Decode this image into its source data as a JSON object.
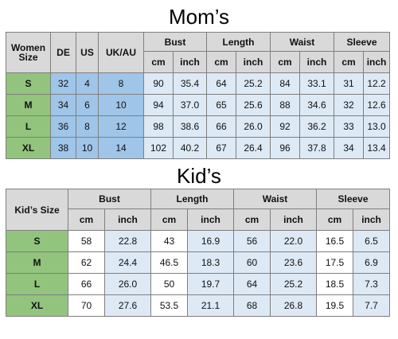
{
  "mom": {
    "title": "Mom’s",
    "headers": {
      "size": "Women Size",
      "de": "DE",
      "us": "US",
      "ukau": "UK/AU",
      "bust": "Bust",
      "length": "Length",
      "waist": "Waist",
      "sleeve": "Sleeve",
      "cm": "cm",
      "inch": "inch"
    },
    "rows": [
      {
        "size": "S",
        "de": "32",
        "us": "4",
        "ukau": "8",
        "bust_cm": "90",
        "bust_in": "35.4",
        "length_cm": "64",
        "length_in": "25.2",
        "waist_cm": "84",
        "waist_in": "33.1",
        "sleeve_cm": "31",
        "sleeve_in": "12.2"
      },
      {
        "size": "M",
        "de": "34",
        "us": "6",
        "ukau": "10",
        "bust_cm": "94",
        "bust_in": "37.0",
        "length_cm": "65",
        "length_in": "25.6",
        "waist_cm": "88",
        "waist_in": "34.6",
        "sleeve_cm": "32",
        "sleeve_in": "12.6"
      },
      {
        "size": "L",
        "de": "36",
        "us": "8",
        "ukau": "12",
        "bust_cm": "98",
        "bust_in": "38.6",
        "length_cm": "66",
        "length_in": "26.0",
        "waist_cm": "92",
        "waist_in": "36.2",
        "sleeve_cm": "33",
        "sleeve_in": "13.0"
      },
      {
        "size": "XL",
        "de": "38",
        "us": "10",
        "ukau": "14",
        "bust_cm": "102",
        "bust_in": "40.2",
        "length_cm": "67",
        "length_in": "26.4",
        "waist_cm": "96",
        "waist_in": "37.8",
        "sleeve_cm": "34",
        "sleeve_in": "13.4"
      }
    ]
  },
  "kid": {
    "title": "Kid’s",
    "headers": {
      "size": "Kid’s Size",
      "bust": "Bust",
      "length": "Length",
      "waist": "Waist",
      "sleeve": "Sleeve",
      "cm": "cm",
      "inch": "inch"
    },
    "rows": [
      {
        "size": "S",
        "bust_cm": "58",
        "bust_in": "22.8",
        "length_cm": "43",
        "length_in": "16.9",
        "waist_cm": "56",
        "waist_in": "22.0",
        "sleeve_cm": "16.5",
        "sleeve_in": "6.5"
      },
      {
        "size": "M",
        "bust_cm": "62",
        "bust_in": "24.4",
        "length_cm": "46.5",
        "length_in": "18.3",
        "waist_cm": "60",
        "waist_in": "23.6",
        "sleeve_cm": "17.5",
        "sleeve_in": "6.9"
      },
      {
        "size": "L",
        "bust_cm": "66",
        "bust_in": "26.0",
        "length_cm": "50",
        "length_in": "19.7",
        "waist_cm": "64",
        "waist_in": "25.2",
        "sleeve_cm": "18.5",
        "sleeve_in": "7.3"
      },
      {
        "size": "XL",
        "bust_cm": "70",
        "bust_in": "27.6",
        "length_cm": "53.5",
        "length_in": "21.1",
        "waist_cm": "68",
        "waist_in": "26.8",
        "sleeve_cm": "19.5",
        "sleeve_in": "7.7"
      }
    ]
  }
}
